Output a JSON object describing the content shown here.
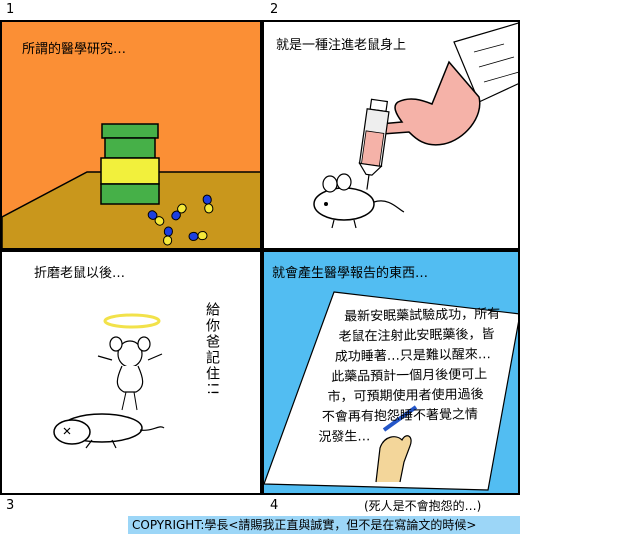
{
  "panels": [
    {
      "number": "1",
      "caption": "所謂的醫學研究…"
    },
    {
      "number": "2",
      "caption": "就是一種注進老鼠身上"
    },
    {
      "number": "3",
      "caption": "折磨老鼠以後…",
      "speech": "給你爸記住!!"
    },
    {
      "number": "4",
      "caption": "就會產生醫學報告的東西…",
      "report_lines": [
        "最新安眠藥試驗成功，所有",
        "老鼠在注射此安眠藥後，皆",
        "成功睡著…只是難以醒來…",
        "此藥品預計一個月後便可上",
        "市，可預期使用者使用過後",
        "不會再有抱怨睡不著覺之情",
        "況發生…"
      ]
    }
  ],
  "footnote": "(死人是不會抱怨的…)",
  "copyright": "COPYRIGHT:學長<請賜我正直與誠實，但不是在寫論文的時候>",
  "colors": {
    "panel1_wall": "#fb8f35",
    "panel1_table": "#c9971c",
    "panel4_bg": "#52bdf2",
    "footer_bg": "#9cd6f7",
    "jar_green": "#46b048",
    "jar_yellow": "#f2f03c",
    "capsule_blue": "#1c3fe0",
    "capsule_yellow": "#f5e93a",
    "glove": "#f5b2a8"
  }
}
